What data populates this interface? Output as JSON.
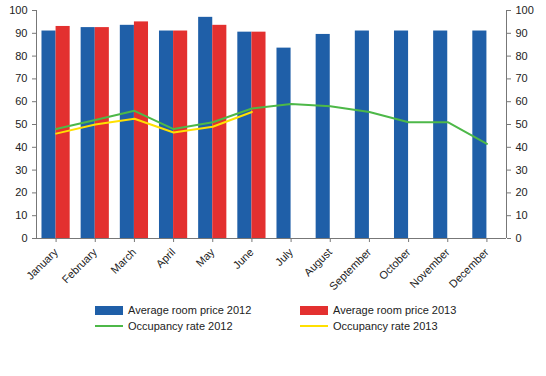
{
  "chart_data": {
    "type": "bar",
    "categories": [
      "January",
      "February",
      "March",
      "April",
      "May",
      "June",
      "July",
      "August",
      "September",
      "October",
      "November",
      "December"
    ],
    "series": [
      {
        "name": "Average room price 2012",
        "type": "bar",
        "color": "#1f5fa8",
        "values": [
          91,
          92.5,
          93.5,
          91,
          97,
          90.5,
          83.5,
          89.5,
          91,
          91,
          91,
          91
        ]
      },
      {
        "name": "Average room price 2013",
        "type": "bar",
        "color": "#e3302f",
        "values": [
          93,
          92.5,
          95,
          91,
          93.5,
          90.5,
          null,
          null,
          null,
          null,
          null,
          null
        ]
      },
      {
        "name": "Occupancy rate 2012",
        "type": "line",
        "axis": "y2",
        "color": "#4db848",
        "line_style": "solid",
        "values": [
          48,
          52,
          56,
          48,
          51,
          57,
          59,
          58,
          55.5,
          51,
          51,
          41.5
        ]
      },
      {
        "name": "Occupancy rate 2013",
        "type": "line",
        "axis": "y2",
        "color": "#ffe000",
        "line_style": "solid",
        "values": [
          46,
          50,
          52.5,
          46.5,
          49,
          55.5,
          null,
          null,
          null,
          null,
          null,
          null
        ]
      }
    ],
    "ylim": [
      0,
      100
    ],
    "yticks": [
      0,
      10,
      20,
      30,
      40,
      50,
      60,
      70,
      80,
      90,
      100
    ],
    "y2lim": [
      0,
      100
    ],
    "y2ticks": [
      0,
      10,
      20,
      30,
      40,
      50,
      60,
      70,
      80,
      90,
      100
    ],
    "grid": false,
    "legend": "bottom"
  }
}
